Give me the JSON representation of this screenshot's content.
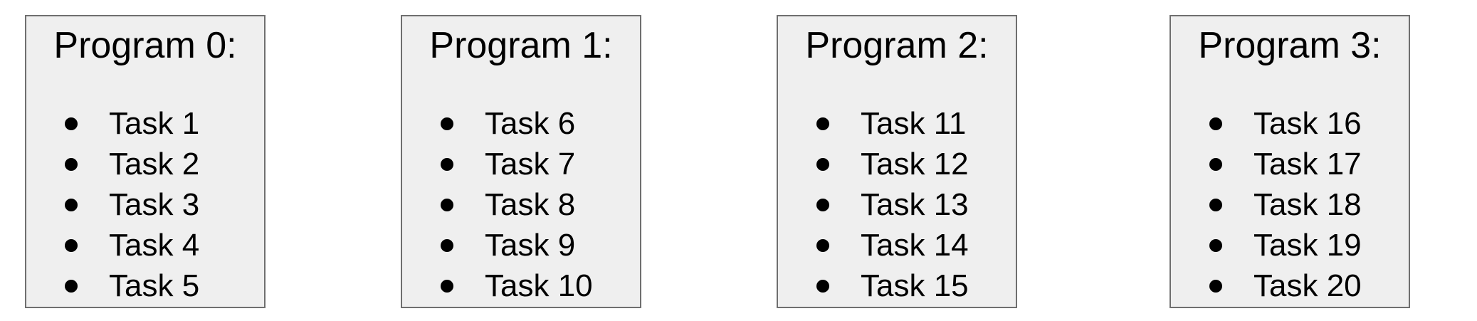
{
  "programs": [
    {
      "title": "Program 0:",
      "tasks": [
        "Task 1",
        "Task 2",
        "Task 3",
        "Task 4",
        "Task 5"
      ]
    },
    {
      "title": "Program 1:",
      "tasks": [
        "Task 6",
        "Task 7",
        "Task 8",
        "Task 9",
        "Task 10"
      ]
    },
    {
      "title": "Program 2:",
      "tasks": [
        "Task 11",
        "Task 12",
        "Task 13",
        "Task 14",
        "Task 15"
      ]
    },
    {
      "title": "Program 3:",
      "tasks": [
        "Task 16",
        "Task 17",
        "Task 18",
        "Task 19",
        "Task 20"
      ]
    }
  ],
  "colors": {
    "box_fill": "#efefef",
    "box_border": "#6f6f6f",
    "text": "#000000"
  }
}
